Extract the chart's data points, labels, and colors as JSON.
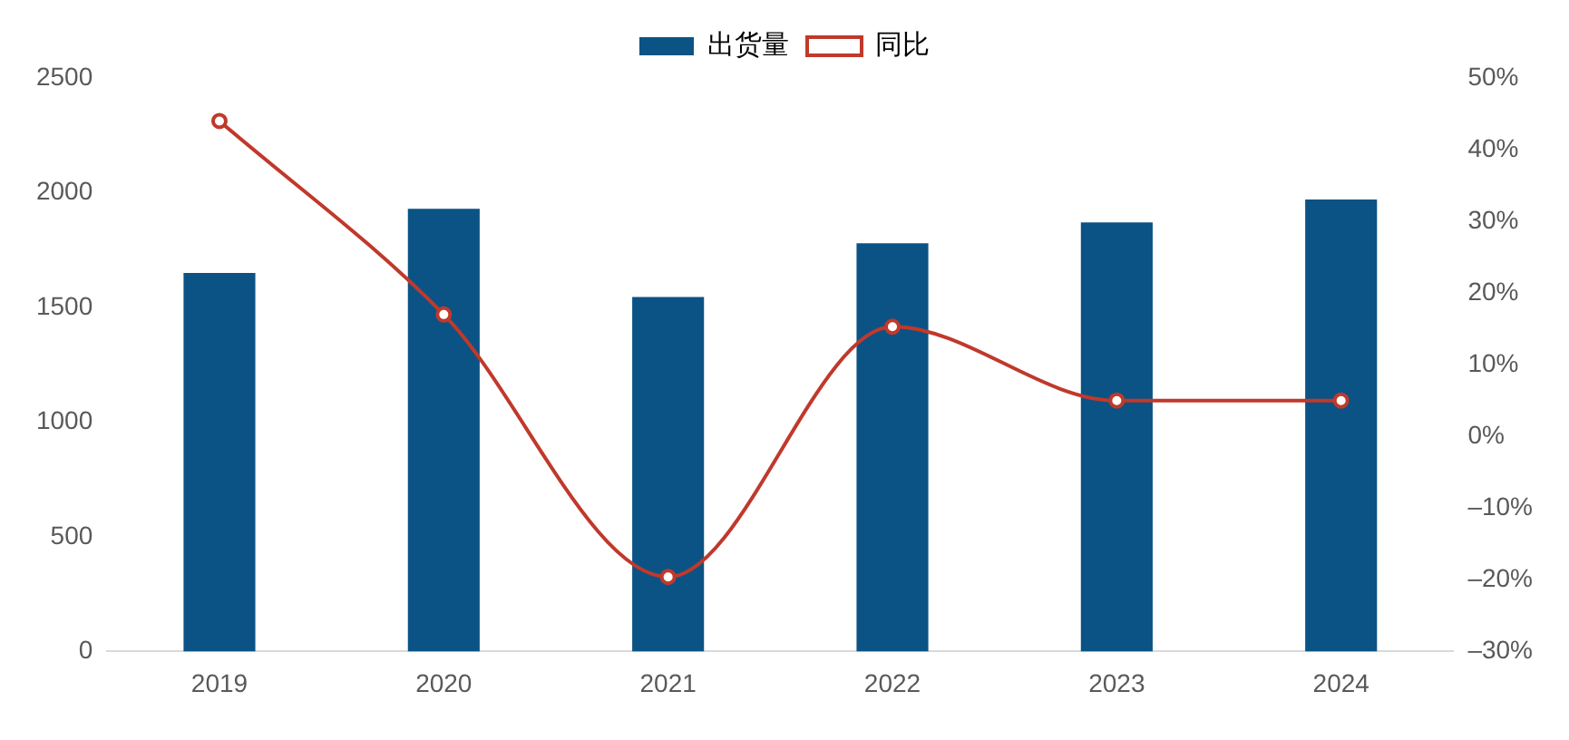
{
  "chart_data": {
    "type": "bar",
    "categories": [
      "2019",
      "2020",
      "2021",
      "2022",
      "2023",
      "2024"
    ],
    "series": [
      {
        "name": "出货量",
        "color": "#0b5384",
        "values": [
          1650,
          1930,
          1545,
          1780,
          1870,
          1970
        ]
      },
      {
        "name": "同比",
        "type": "line",
        "axis": "y2",
        "color": "#c0392b",
        "marker": "circle",
        "values": [
          44,
          17,
          -19.6,
          15.3,
          5,
          5
        ]
      }
    ],
    "ylim": [
      0,
      2500
    ],
    "yticks": [
      0,
      500,
      1000,
      1500,
      2000,
      2500
    ],
    "y2lim": [
      -30,
      50
    ],
    "y2ticks": [
      {
        "value": -30,
        "label": "–30%"
      },
      {
        "value": -20,
        "label": "–20%"
      },
      {
        "value": -10,
        "label": "–10%"
      },
      {
        "value": 0,
        "label": "0%"
      },
      {
        "value": 10,
        "label": "10%"
      },
      {
        "value": 20,
        "label": "20%"
      },
      {
        "value": 30,
        "label": "30%"
      },
      {
        "value": 40,
        "label": "40%"
      },
      {
        "value": 50,
        "label": "50%"
      }
    ],
    "grid": false,
    "legend": "top"
  }
}
